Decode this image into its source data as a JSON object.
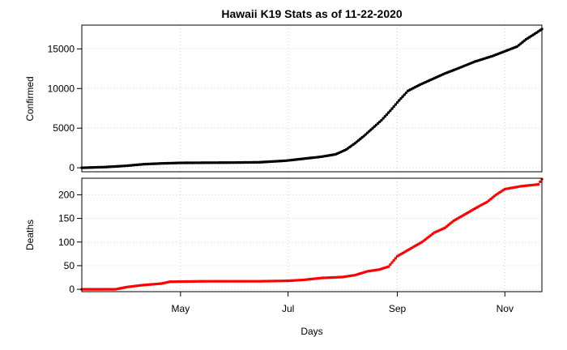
{
  "chart_data": [
    {
      "type": "scatter",
      "title": "Hawaii K19 Stats as of 11-22-2020",
      "xlabel": "",
      "ylabel": "Confirmed",
      "xlim": [
        "2020-03-06",
        "2020-11-22"
      ],
      "ylim": [
        -500,
        18000
      ],
      "yticks": [
        0,
        5000,
        10000,
        15000
      ],
      "grid": true,
      "color": "#000000",
      "series": [
        {
          "x": [
            "2020-03-06",
            "2020-03-20",
            "2020-03-31",
            "2020-04-10",
            "2020-04-20",
            "2020-05-01",
            "2020-05-15",
            "2020-06-01",
            "2020-06-15",
            "2020-06-30",
            "2020-07-10",
            "2020-07-20",
            "2020-07-28",
            "2020-08-03",
            "2020-08-08",
            "2020-08-13",
            "2020-08-18",
            "2020-08-23",
            "2020-08-28",
            "2020-09-02",
            "2020-09-07",
            "2020-09-14",
            "2020-09-21",
            "2020-09-28",
            "2020-10-05",
            "2020-10-15",
            "2020-10-25",
            "2020-11-01",
            "2020-11-08",
            "2020-11-13",
            "2020-11-18",
            "2020-11-22"
          ],
          "y": [
            0,
            100,
            250,
            450,
            550,
            620,
            640,
            660,
            700,
            900,
            1150,
            1400,
            1700,
            2300,
            3100,
            4000,
            5000,
            6000,
            7200,
            8500,
            9700,
            10500,
            11200,
            11900,
            12500,
            13400,
            14100,
            14700,
            15300,
            16200,
            16900,
            17500
          ]
        }
      ]
    },
    {
      "type": "scatter",
      "title": "",
      "xlabel": "Days",
      "ylabel": "Deaths",
      "xlim": [
        "2020-03-06",
        "2020-11-22"
      ],
      "ylim": [
        -5,
        235
      ],
      "yticks": [
        0,
        50,
        100,
        150,
        200
      ],
      "xticks": [
        "May",
        "Jul",
        "Sep",
        "Nov"
      ],
      "xtick_dates": [
        "2020-05-01",
        "2020-07-01",
        "2020-09-01",
        "2020-11-01"
      ],
      "grid": true,
      "color": "#ff0000",
      "series": [
        {
          "x": [
            "2020-03-06",
            "2020-03-25",
            "2020-04-01",
            "2020-04-10",
            "2020-04-20",
            "2020-04-25",
            "2020-05-15",
            "2020-06-15",
            "2020-07-01",
            "2020-07-10",
            "2020-07-20",
            "2020-08-01",
            "2020-08-08",
            "2020-08-15",
            "2020-08-22",
            "2020-08-27",
            "2020-09-01",
            "2020-09-08",
            "2020-09-15",
            "2020-09-22",
            "2020-09-28",
            "2020-10-03",
            "2020-10-10",
            "2020-10-17",
            "2020-10-22",
            "2020-10-27",
            "2020-11-01",
            "2020-11-10",
            "2020-11-15",
            "2020-11-20",
            "2020-11-22"
          ],
          "y": [
            0,
            0,
            5,
            9,
            12,
            16,
            17,
            17,
            18,
            20,
            24,
            26,
            30,
            38,
            42,
            48,
            70,
            85,
            100,
            120,
            130,
            145,
            160,
            175,
            185,
            200,
            212,
            218,
            220,
            222,
            233
          ]
        }
      ]
    }
  ]
}
